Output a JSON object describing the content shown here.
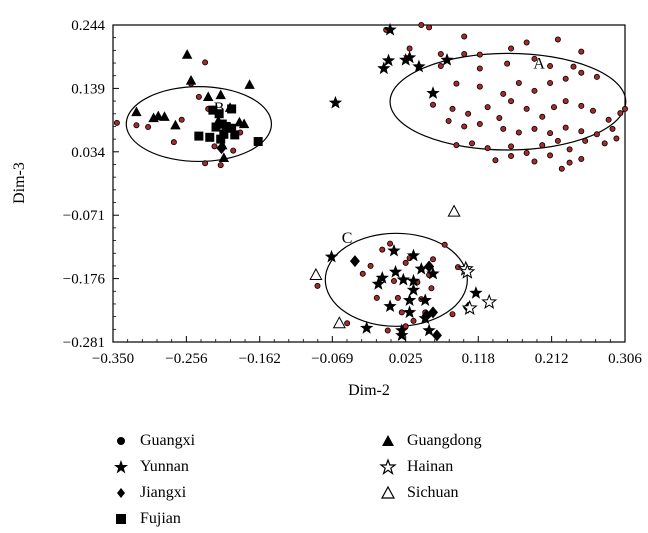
{
  "chart_data": {
    "type": "scatter",
    "xlabel": "Dim-2",
    "ylabel": "Dim-3",
    "xlim": [
      -0.35,
      0.306
    ],
    "ylim": [
      -0.281,
      0.244
    ],
    "xticks": [
      "−0.350",
      "−0.256",
      "−0.162",
      "−0.069",
      "0.025",
      "0.118",
      "0.212",
      "0.306"
    ],
    "xtick_values": [
      -0.35,
      -0.256,
      -0.162,
      -0.069,
      0.025,
      0.118,
      0.212,
      0.306
    ],
    "yticks": [
      "0.244",
      "0.139",
      "0.034",
      "−0.071",
      "−0.176",
      "−0.281"
    ],
    "ytick_values": [
      0.244,
      0.139,
      0.034,
      -0.071,
      -0.176,
      -0.281
    ],
    "clusters": [
      {
        "label": "A",
        "center": [
          0.156,
          0.117
        ],
        "radii": [
          0.151,
          0.08
        ]
      },
      {
        "label": "B",
        "center": [
          -0.24,
          0.08
        ],
        "radii": [
          0.093,
          0.062
        ]
      },
      {
        "label": "C",
        "center": [
          0.013,
          -0.178
        ],
        "radii": [
          0.091,
          0.077
        ]
      }
    ],
    "cluster_label_positions": [
      [
        0.196,
        0.172
      ],
      [
        -0.214,
        0.098
      ],
      [
        -0.05,
        -0.117
      ]
    ],
    "series": [
      {
        "name": "Guangxi",
        "marker": "dot",
        "points": [
          [
            0.0,
            0.236
          ],
          [
            0.045,
            0.244
          ],
          [
            0.055,
            0.24
          ],
          [
            0.1,
            0.225
          ],
          [
            0.16,
            0.205
          ],
          [
            0.18,
            0.215
          ],
          [
            0.22,
            0.22
          ],
          [
            0.25,
            0.2
          ],
          [
            0.03,
            0.205
          ],
          [
            0.07,
            0.196
          ],
          [
            0.1,
            0.196
          ],
          [
            0.12,
            0.195
          ],
          [
            0.07,
            0.176
          ],
          [
            0.12,
            0.172
          ],
          [
            0.155,
            0.18
          ],
          [
            0.19,
            0.188
          ],
          [
            0.21,
            0.176
          ],
          [
            0.24,
            0.175
          ],
          [
            0.09,
            0.147
          ],
          [
            0.12,
            0.142
          ],
          [
            0.15,
            0.13
          ],
          [
            0.17,
            0.148
          ],
          [
            0.19,
            0.135
          ],
          [
            0.21,
            0.148
          ],
          [
            0.23,
            0.155
          ],
          [
            0.25,
            0.165
          ],
          [
            0.27,
            0.158
          ],
          [
            0.06,
            0.112
          ],
          [
            0.085,
            0.105
          ],
          [
            0.105,
            0.097
          ],
          [
            0.13,
            0.108
          ],
          [
            0.145,
            0.09
          ],
          [
            0.16,
            0.118
          ],
          [
            0.18,
            0.105
          ],
          [
            0.2,
            0.092
          ],
          [
            0.215,
            0.108
          ],
          [
            0.23,
            0.118
          ],
          [
            0.25,
            0.11
          ],
          [
            0.265,
            0.102
          ],
          [
            0.285,
            0.087
          ],
          [
            0.3,
            0.098
          ],
          [
            0.306,
            0.105
          ],
          [
            0.08,
            0.085
          ],
          [
            0.1,
            0.076
          ],
          [
            0.12,
            0.08
          ],
          [
            0.15,
            0.072
          ],
          [
            0.17,
            0.066
          ],
          [
            0.19,
            0.072
          ],
          [
            0.21,
            0.065
          ],
          [
            0.23,
            0.074
          ],
          [
            0.25,
            0.068
          ],
          [
            0.27,
            0.063
          ],
          [
            0.29,
            0.072
          ],
          [
            0.09,
            0.045
          ],
          [
            0.11,
            0.048
          ],
          [
            0.13,
            0.04
          ],
          [
            0.16,
            0.043
          ],
          [
            0.18,
            0.032
          ],
          [
            0.2,
            0.045
          ],
          [
            0.22,
            0.052
          ],
          [
            0.235,
            0.038
          ],
          [
            0.255,
            0.052
          ],
          [
            0.28,
            0.048
          ],
          [
            0.295,
            0.056
          ],
          [
            0.14,
            0.02
          ],
          [
            0.16,
            0.027
          ],
          [
            0.19,
            0.018
          ],
          [
            0.21,
            0.028
          ],
          [
            0.235,
            0.016
          ],
          [
            0.25,
            0.022
          ],
          [
            0.225,
            0.006
          ],
          [
            -0.345,
            0.082
          ],
          [
            -0.32,
            0.078
          ],
          [
            -0.305,
            0.075
          ],
          [
            -0.272,
            0.05
          ],
          [
            -0.262,
            0.087
          ],
          [
            -0.25,
            0.147
          ],
          [
            -0.24,
            0.125
          ],
          [
            -0.232,
            0.182
          ],
          [
            -0.228,
            0.105
          ],
          [
            -0.215,
            0.08
          ],
          [
            -0.22,
            0.043
          ],
          [
            -0.232,
            0.015
          ],
          [
            -0.212,
            0.012
          ],
          [
            -0.196,
            0.036
          ],
          [
            -0.187,
            0.066
          ],
          [
            -0.088,
            -0.188
          ],
          [
            -0.05,
            -0.25
          ],
          [
            -0.02,
            -0.155
          ],
          [
            -0.005,
            -0.128
          ],
          [
            0.005,
            -0.118
          ],
          [
            0.01,
            -0.18
          ],
          [
            0.015,
            -0.208
          ],
          [
            0.02,
            -0.232
          ],
          [
            0.025,
            -0.255
          ],
          [
            0.03,
            -0.142
          ],
          [
            0.04,
            -0.182
          ],
          [
            0.045,
            -0.21
          ],
          [
            0.05,
            -0.232
          ],
          [
            0.055,
            -0.17
          ],
          [
            0.06,
            -0.144
          ],
          [
            0.065,
            -0.27
          ],
          [
            0.075,
            -0.12
          ],
          [
            0.085,
            -0.235
          ],
          [
            0.092,
            -0.157
          ],
          [
            -0.012,
            -0.208
          ],
          [
            0.025,
            -0.15
          ],
          [
            0.035,
            -0.246
          ],
          [
            -0.03,
            -0.168
          ],
          [
            0.058,
            -0.192
          ],
          [
            0.002,
            -0.262
          ]
        ]
      },
      {
        "name": "Yunnan",
        "marker": "star",
        "points": [
          [
            0.005,
            0.236
          ],
          [
            0.03,
            0.19
          ],
          [
            0.025,
            0.186
          ],
          [
            0.003,
            0.185
          ],
          [
            -0.003,
            0.172
          ],
          [
            0.042,
            0.175
          ],
          [
            0.078,
            0.186
          ],
          [
            0.06,
            0.131
          ],
          [
            -0.065,
            0.115
          ],
          [
            -0.07,
            -0.14
          ],
          [
            0.01,
            -0.13
          ],
          [
            0.035,
            -0.138
          ],
          [
            0.045,
            -0.16
          ],
          [
            0.035,
            -0.18
          ],
          [
            0.035,
            -0.195
          ],
          [
            0.05,
            -0.212
          ],
          [
            0.03,
            -0.232
          ],
          [
            0.02,
            -0.262
          ],
          [
            -0.025,
            -0.258
          ],
          [
            0.055,
            -0.262
          ],
          [
            0.005,
            -0.222
          ],
          [
            0.06,
            -0.168
          ],
          [
            0.115,
            -0.2
          ],
          [
            0.012,
            -0.165
          ],
          [
            -0.005,
            -0.175
          ],
          [
            -0.01,
            -0.185
          ],
          [
            0.03,
            -0.212
          ],
          [
            0.022,
            -0.178
          ],
          [
            0.05,
            -0.242
          ],
          [
            0.02,
            -0.27
          ]
        ]
      },
      {
        "name": "Jiangxi",
        "marker": "diamond",
        "points": [
          [
            -0.211,
            0.04
          ],
          [
            -0.04,
            -0.147
          ],
          [
            0.055,
            -0.156
          ],
          [
            0.052,
            -0.237
          ],
          [
            0.06,
            -0.232
          ],
          [
            0.065,
            -0.27
          ],
          [
            0.105,
            -0.224
          ]
        ]
      },
      {
        "name": "Fujian",
        "marker": "square",
        "points": [
          [
            -0.222,
            0.103
          ],
          [
            -0.214,
            0.097
          ],
          [
            -0.198,
            0.105
          ],
          [
            -0.208,
            0.063
          ],
          [
            -0.218,
            0.075
          ],
          [
            -0.194,
            0.062
          ],
          [
            -0.205,
            0.076
          ],
          [
            -0.212,
            0.055
          ],
          [
            -0.24,
            0.06
          ],
          [
            -0.226,
            0.058
          ],
          [
            -0.198,
            0.073
          ],
          [
            -0.21,
            0.08
          ],
          [
            -0.164,
            0.051
          ]
        ]
      },
      {
        "name": "Guangdong",
        "marker": "triangle",
        "points": [
          [
            -0.32,
            0.1
          ],
          [
            -0.298,
            0.09
          ],
          [
            -0.292,
            0.093
          ],
          [
            -0.284,
            0.092
          ],
          [
            -0.27,
            0.078
          ],
          [
            -0.255,
            0.195
          ],
          [
            -0.25,
            0.152
          ],
          [
            -0.228,
            0.125
          ],
          [
            -0.212,
            0.128
          ],
          [
            -0.2,
            0.107
          ],
          [
            -0.188,
            0.083
          ],
          [
            -0.182,
            0.08
          ],
          [
            -0.175,
            0.145
          ],
          [
            -0.21,
            0.045
          ],
          [
            -0.208,
            0.024
          ],
          [
            -0.2,
            0.074
          ],
          [
            -0.215,
            0.085
          ]
        ]
      },
      {
        "name": "Hainan",
        "marker": "star-open",
        "points": [
          [
            0.102,
            -0.16
          ],
          [
            0.104,
            -0.165
          ],
          [
            0.132,
            -0.215
          ],
          [
            0.107,
            -0.225
          ]
        ]
      },
      {
        "name": "Sichuan",
        "marker": "triangle-open",
        "points": [
          [
            0.087,
            -0.065
          ],
          [
            -0.09,
            -0.17
          ],
          [
            -0.06,
            -0.25
          ]
        ]
      }
    ]
  },
  "legend": {
    "items": [
      {
        "label": "Guangxi",
        "icon": "dot-icon"
      },
      {
        "label": "Yunnan",
        "icon": "star-icon"
      },
      {
        "label": "Jiangxi",
        "icon": "diamond-icon"
      },
      {
        "label": "Fujian",
        "icon": "square-icon"
      },
      {
        "label": "Guangdong",
        "icon": "triangle-icon"
      },
      {
        "label": "Hainan",
        "icon": "open-star-icon"
      },
      {
        "label": "Sichuan",
        "icon": "open-triangle-icon"
      }
    ]
  },
  "colors": {
    "point_fill": "#a52a2a",
    "ink": "#000000"
  }
}
